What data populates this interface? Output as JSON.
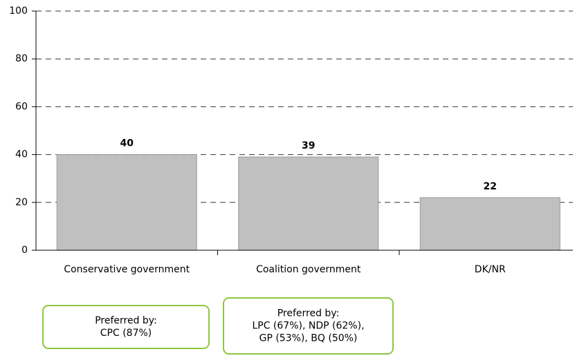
{
  "chart_data": {
    "type": "bar",
    "categories": [
      "Conservative government",
      "Coalition government",
      "DK/NR"
    ],
    "values": [
      40,
      39,
      22
    ],
    "color": "#c0c0c0",
    "ylim": [
      0,
      100
    ],
    "yticks": [
      0,
      20,
      40,
      60,
      80,
      100
    ],
    "grid": true,
    "annotations": [
      [
        "Preferred by:",
        "CPC (87%)"
      ],
      [
        "Preferred by:",
        "LPC (67%), NDP (62%),",
        "GP (53%), BQ (50%)"
      ]
    ]
  }
}
